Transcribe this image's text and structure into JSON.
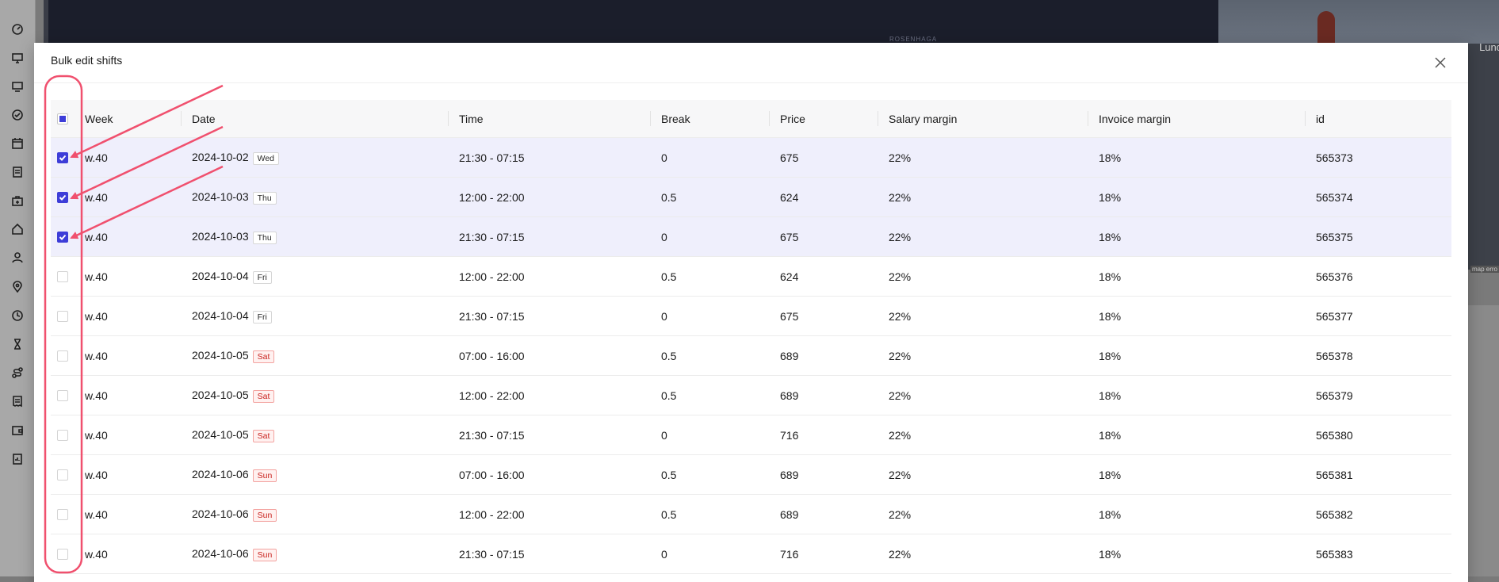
{
  "background": {
    "map_label": "ROSENHAGA",
    "photo_label": "Lund",
    "map_error_label": "map erro"
  },
  "sidebar": {
    "icons": [
      "dashboard-icon",
      "monitor-icon",
      "desktop-icon",
      "check-circle-icon",
      "calendar-icon",
      "clipboard-icon",
      "briefcase-plus-icon",
      "home-icon",
      "user-icon",
      "map-pin-icon",
      "clock-icon",
      "hourglass-icon",
      "route-icon",
      "receipt-icon",
      "wallet-icon",
      "report-icon"
    ]
  },
  "modal": {
    "title": "Bulk edit shifts",
    "close_icon": "close-icon"
  },
  "table": {
    "headers": {
      "week": "Week",
      "date": "Date",
      "time": "Time",
      "break": "Break",
      "price": "Price",
      "salary_margin": "Salary margin",
      "invoice_margin": "Invoice margin",
      "id": "id"
    },
    "header_checkbox_state": "partial",
    "rows": [
      {
        "checked": true,
        "week": "w.40",
        "date": "2024-10-02",
        "day": "Wed",
        "weekend": false,
        "time": "21:30 - 07:15",
        "break": "0",
        "price": "675",
        "salary_margin": "22%",
        "invoice_margin": "18%",
        "id": "565373"
      },
      {
        "checked": true,
        "week": "w.40",
        "date": "2024-10-03",
        "day": "Thu",
        "weekend": false,
        "time": "12:00 - 22:00",
        "break": "0.5",
        "price": "624",
        "salary_margin": "22%",
        "invoice_margin": "18%",
        "id": "565374"
      },
      {
        "checked": true,
        "week": "w.40",
        "date": "2024-10-03",
        "day": "Thu",
        "weekend": false,
        "time": "21:30 - 07:15",
        "break": "0",
        "price": "675",
        "salary_margin": "22%",
        "invoice_margin": "18%",
        "id": "565375"
      },
      {
        "checked": false,
        "week": "w.40",
        "date": "2024-10-04",
        "day": "Fri",
        "weekend": false,
        "time": "12:00 - 22:00",
        "break": "0.5",
        "price": "624",
        "salary_margin": "22%",
        "invoice_margin": "18%",
        "id": "565376"
      },
      {
        "checked": false,
        "week": "w.40",
        "date": "2024-10-04",
        "day": "Fri",
        "weekend": false,
        "time": "21:30 - 07:15",
        "break": "0",
        "price": "675",
        "salary_margin": "22%",
        "invoice_margin": "18%",
        "id": "565377"
      },
      {
        "checked": false,
        "week": "w.40",
        "date": "2024-10-05",
        "day": "Sat",
        "weekend": true,
        "time": "07:00 - 16:00",
        "break": "0.5",
        "price": "689",
        "salary_margin": "22%",
        "invoice_margin": "18%",
        "id": "565378"
      },
      {
        "checked": false,
        "week": "w.40",
        "date": "2024-10-05",
        "day": "Sat",
        "weekend": true,
        "time": "12:00 - 22:00",
        "break": "0.5",
        "price": "689",
        "salary_margin": "22%",
        "invoice_margin": "18%",
        "id": "565379"
      },
      {
        "checked": false,
        "week": "w.40",
        "date": "2024-10-05",
        "day": "Sat",
        "weekend": true,
        "time": "21:30 - 07:15",
        "break": "0",
        "price": "716",
        "salary_margin": "22%",
        "invoice_margin": "18%",
        "id": "565380"
      },
      {
        "checked": false,
        "week": "w.40",
        "date": "2024-10-06",
        "day": "Sun",
        "weekend": true,
        "time": "07:00 - 16:00",
        "break": "0.5",
        "price": "689",
        "salary_margin": "22%",
        "invoice_margin": "18%",
        "id": "565381"
      },
      {
        "checked": false,
        "week": "w.40",
        "date": "2024-10-06",
        "day": "Sun",
        "weekend": true,
        "time": "12:00 - 22:00",
        "break": "0.5",
        "price": "689",
        "salary_margin": "22%",
        "invoice_margin": "18%",
        "id": "565382"
      },
      {
        "checked": false,
        "week": "w.40",
        "date": "2024-10-06",
        "day": "Sun",
        "weekend": true,
        "time": "21:30 - 07:15",
        "break": "0",
        "price": "716",
        "salary_margin": "22%",
        "invoice_margin": "18%",
        "id": "565383"
      }
    ]
  },
  "colors": {
    "accent": "#3d3dd8",
    "selected_row": "#efeffc",
    "annotation": "#f0506e",
    "weekend_tag": "#c8201c"
  }
}
